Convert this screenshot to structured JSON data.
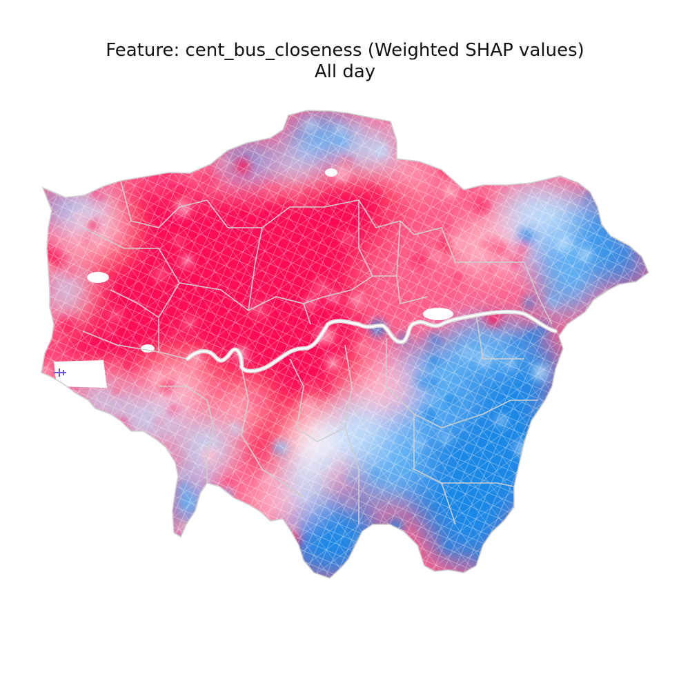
{
  "figure": {
    "title_line1": "Feature: cent_bus_closeness (Weighted SHAP values)",
    "title_line2": "All day"
  },
  "map": {
    "region": "Greater London",
    "colors": {
      "strong_positive": "#ff0d57",
      "positive": "#ff5d88",
      "weak_positive": "#ffb6c8",
      "neutral": "#f5f5fb",
      "weak_negative": "#bcdcfa",
      "negative": "#5fb0f3",
      "strong_negative": "#1e88e5",
      "boundary": "#cfcfcf",
      "river": "#dddddd"
    },
    "zones": [
      {
        "name": "west-north",
        "sign": "positive"
      },
      {
        "name": "central",
        "sign": "positive"
      },
      {
        "name": "north-east",
        "sign": "positive"
      },
      {
        "name": "south-west",
        "sign": "mixed"
      },
      {
        "name": "south-east",
        "sign": "negative"
      },
      {
        "name": "far-east",
        "sign": "negative"
      },
      {
        "name": "north-edge",
        "sign": "negative"
      }
    ]
  }
}
